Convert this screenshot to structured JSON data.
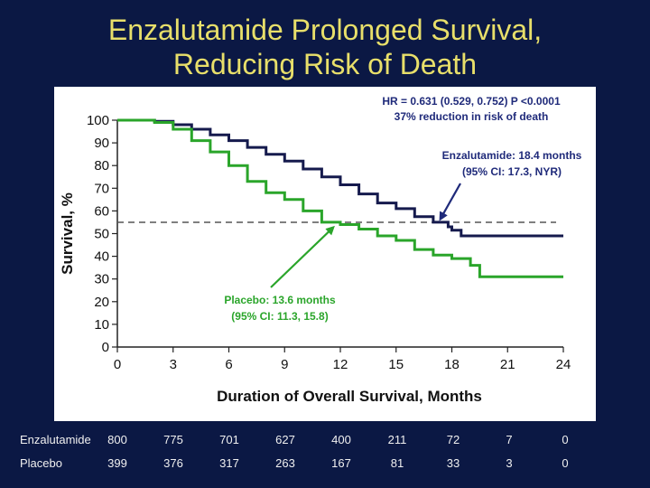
{
  "slide": {
    "title_line1": "Enzalutamide Prolonged Survival,",
    "title_line2": "Reducing Risk of Death"
  },
  "colors": {
    "background": "#0b1844",
    "title": "#e8df6a",
    "enzalutamide": "#151a4d",
    "placebo": "#2aa52a",
    "reference": "#555555",
    "annotation_blue": "#1f2a7a"
  },
  "chart_data": {
    "type": "line",
    "xlabel": "Duration of Overall Survival, Months",
    "ylabel": "Survival, %",
    "xlim": [
      0,
      24
    ],
    "ylim": [
      0,
      100
    ],
    "xticks": [
      0,
      3,
      6,
      9,
      12,
      15,
      18,
      21,
      24
    ],
    "yticks": [
      0,
      10,
      20,
      30,
      40,
      50,
      60,
      70,
      80,
      90,
      100
    ],
    "reference_line_y": 55,
    "series": [
      {
        "name": "Enzalutamide",
        "x": [
          0,
          1,
          2,
          3,
          4,
          5,
          6,
          7,
          8,
          9,
          10,
          11,
          12,
          13,
          14,
          15,
          16,
          17,
          17.8,
          18,
          18.5,
          19,
          20,
          21,
          22,
          23,
          24
        ],
        "y": [
          100,
          100,
          99.5,
          98,
          96,
          93.5,
          91,
          88,
          85,
          82,
          78.5,
          75,
          71.5,
          67.5,
          63.5,
          61,
          57.5,
          55,
          53,
          51.5,
          49,
          49,
          49,
          49,
          49,
          49,
          49
        ]
      },
      {
        "name": "Placebo",
        "x": [
          0,
          1,
          2,
          3,
          4,
          5,
          6,
          7,
          8,
          9,
          10,
          11,
          12,
          13,
          14,
          15,
          16,
          17,
          18,
          18.5,
          19,
          19.5,
          20,
          21,
          22,
          23,
          24
        ],
        "y": [
          100,
          100,
          99,
          96,
          91,
          86,
          80,
          73,
          68,
          65,
          60,
          55,
          54,
          52,
          49,
          47,
          43,
          40.5,
          39,
          39,
          36,
          31,
          31,
          31,
          31,
          31,
          31
        ]
      }
    ],
    "annotations": {
      "hr_line1": "HR = 0.631 (0.529, 0.752) P <0.0001",
      "hr_line2": "37% reduction in risk of death",
      "enzalutamide_line1": "Enzalutamide: 18.4 months",
      "enzalutamide_line2": "(95% CI: 17.3, NYR)",
      "placebo_line1": "Placebo: 13.6 months",
      "placebo_line2": "(95% CI: 11.3, 15.8)"
    }
  },
  "risk_table": {
    "rows": [
      {
        "label": "Enzalutamide",
        "values": [
          "800",
          "775",
          "701",
          "627",
          "400",
          "211",
          "72",
          "7",
          "0"
        ]
      },
      {
        "label": "Placebo",
        "values": [
          "399",
          "376",
          "317",
          "263",
          "167",
          "81",
          "33",
          "3",
          "0"
        ]
      }
    ]
  }
}
